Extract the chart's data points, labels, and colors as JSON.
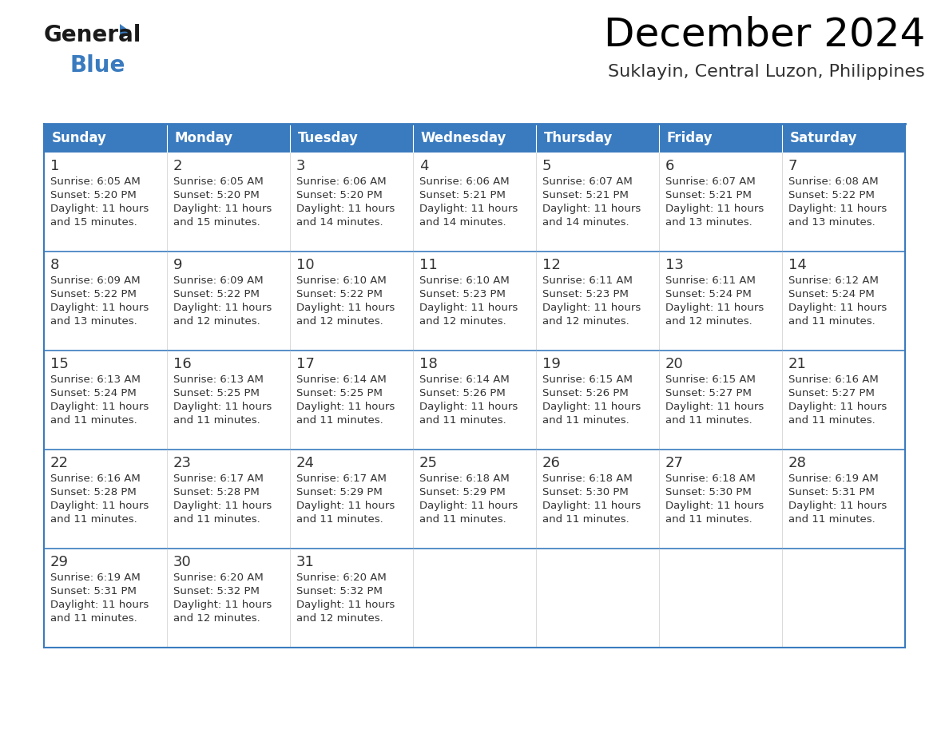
{
  "title": "December 2024",
  "subtitle": "Suklayin, Central Luzon, Philippines",
  "header_color": "#3a7bbf",
  "header_text_color": "#ffffff",
  "cell_bg_color": "#ffffff",
  "alt_cell_bg_color": "#f0f4f8",
  "cell_border_color": "#3a7bbf",
  "day_number_color": "#333333",
  "text_color": "#333333",
  "days_of_week": [
    "Sunday",
    "Monday",
    "Tuesday",
    "Wednesday",
    "Thursday",
    "Friday",
    "Saturday"
  ],
  "calendar_data": [
    [
      {
        "day": 1,
        "sunrise": "6:05 AM",
        "sunset": "5:20 PM",
        "daylight_hours": 11,
        "daylight_minutes": 15
      },
      {
        "day": 2,
        "sunrise": "6:05 AM",
        "sunset": "5:20 PM",
        "daylight_hours": 11,
        "daylight_minutes": 15
      },
      {
        "day": 3,
        "sunrise": "6:06 AM",
        "sunset": "5:20 PM",
        "daylight_hours": 11,
        "daylight_minutes": 14
      },
      {
        "day": 4,
        "sunrise": "6:06 AM",
        "sunset": "5:21 PM",
        "daylight_hours": 11,
        "daylight_minutes": 14
      },
      {
        "day": 5,
        "sunrise": "6:07 AM",
        "sunset": "5:21 PM",
        "daylight_hours": 11,
        "daylight_minutes": 14
      },
      {
        "day": 6,
        "sunrise": "6:07 AM",
        "sunset": "5:21 PM",
        "daylight_hours": 11,
        "daylight_minutes": 13
      },
      {
        "day": 7,
        "sunrise": "6:08 AM",
        "sunset": "5:22 PM",
        "daylight_hours": 11,
        "daylight_minutes": 13
      }
    ],
    [
      {
        "day": 8,
        "sunrise": "6:09 AM",
        "sunset": "5:22 PM",
        "daylight_hours": 11,
        "daylight_minutes": 13
      },
      {
        "day": 9,
        "sunrise": "6:09 AM",
        "sunset": "5:22 PM",
        "daylight_hours": 11,
        "daylight_minutes": 12
      },
      {
        "day": 10,
        "sunrise": "6:10 AM",
        "sunset": "5:22 PM",
        "daylight_hours": 11,
        "daylight_minutes": 12
      },
      {
        "day": 11,
        "sunrise": "6:10 AM",
        "sunset": "5:23 PM",
        "daylight_hours": 11,
        "daylight_minutes": 12
      },
      {
        "day": 12,
        "sunrise": "6:11 AM",
        "sunset": "5:23 PM",
        "daylight_hours": 11,
        "daylight_minutes": 12
      },
      {
        "day": 13,
        "sunrise": "6:11 AM",
        "sunset": "5:24 PM",
        "daylight_hours": 11,
        "daylight_minutes": 12
      },
      {
        "day": 14,
        "sunrise": "6:12 AM",
        "sunset": "5:24 PM",
        "daylight_hours": 11,
        "daylight_minutes": 11
      }
    ],
    [
      {
        "day": 15,
        "sunrise": "6:13 AM",
        "sunset": "5:24 PM",
        "daylight_hours": 11,
        "daylight_minutes": 11
      },
      {
        "day": 16,
        "sunrise": "6:13 AM",
        "sunset": "5:25 PM",
        "daylight_hours": 11,
        "daylight_minutes": 11
      },
      {
        "day": 17,
        "sunrise": "6:14 AM",
        "sunset": "5:25 PM",
        "daylight_hours": 11,
        "daylight_minutes": 11
      },
      {
        "day": 18,
        "sunrise": "6:14 AM",
        "sunset": "5:26 PM",
        "daylight_hours": 11,
        "daylight_minutes": 11
      },
      {
        "day": 19,
        "sunrise": "6:15 AM",
        "sunset": "5:26 PM",
        "daylight_hours": 11,
        "daylight_minutes": 11
      },
      {
        "day": 20,
        "sunrise": "6:15 AM",
        "sunset": "5:27 PM",
        "daylight_hours": 11,
        "daylight_minutes": 11
      },
      {
        "day": 21,
        "sunrise": "6:16 AM",
        "sunset": "5:27 PM",
        "daylight_hours": 11,
        "daylight_minutes": 11
      }
    ],
    [
      {
        "day": 22,
        "sunrise": "6:16 AM",
        "sunset": "5:28 PM",
        "daylight_hours": 11,
        "daylight_minutes": 11
      },
      {
        "day": 23,
        "sunrise": "6:17 AM",
        "sunset": "5:28 PM",
        "daylight_hours": 11,
        "daylight_minutes": 11
      },
      {
        "day": 24,
        "sunrise": "6:17 AM",
        "sunset": "5:29 PM",
        "daylight_hours": 11,
        "daylight_minutes": 11
      },
      {
        "day": 25,
        "sunrise": "6:18 AM",
        "sunset": "5:29 PM",
        "daylight_hours": 11,
        "daylight_minutes": 11
      },
      {
        "day": 26,
        "sunrise": "6:18 AM",
        "sunset": "5:30 PM",
        "daylight_hours": 11,
        "daylight_minutes": 11
      },
      {
        "day": 27,
        "sunrise": "6:18 AM",
        "sunset": "5:30 PM",
        "daylight_hours": 11,
        "daylight_minutes": 11
      },
      {
        "day": 28,
        "sunrise": "6:19 AM",
        "sunset": "5:31 PM",
        "daylight_hours": 11,
        "daylight_minutes": 11
      }
    ],
    [
      {
        "day": 29,
        "sunrise": "6:19 AM",
        "sunset": "5:31 PM",
        "daylight_hours": 11,
        "daylight_minutes": 11
      },
      {
        "day": 30,
        "sunrise": "6:20 AM",
        "sunset": "5:32 PM",
        "daylight_hours": 11,
        "daylight_minutes": 12
      },
      {
        "day": 31,
        "sunrise": "6:20 AM",
        "sunset": "5:32 PM",
        "daylight_hours": 11,
        "daylight_minutes": 12
      },
      null,
      null,
      null,
      null
    ]
  ],
  "logo_text_general": "General",
  "logo_text_blue": "Blue",
  "logo_color_general": "#1a1a1a",
  "logo_color_blue": "#3a7bbf",
  "logo_triangle_color": "#3a7bbf",
  "fig_width": 11.88,
  "fig_height": 9.18,
  "dpi": 100
}
